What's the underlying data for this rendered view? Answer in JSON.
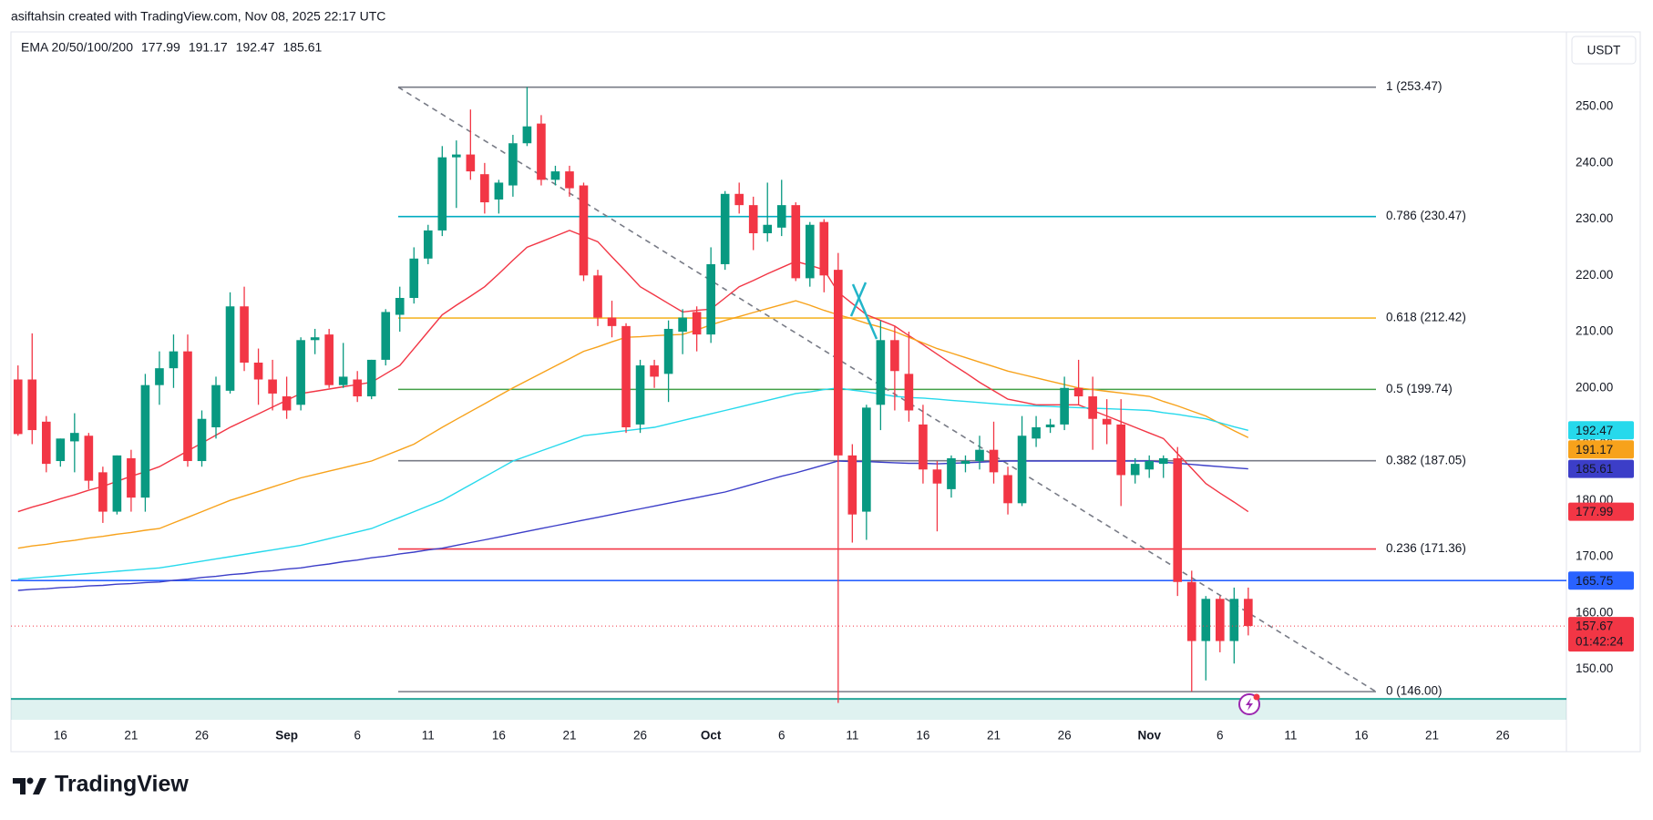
{
  "header": "asiftahsin created with TradingView.com, Nov 08, 2025 22:17 UTC",
  "currency": "USDT",
  "logo": "TradingView",
  "chart_data": {
    "type": "candlestick",
    "legend_title": "EMA 20/50/100/200",
    "categories": [
      null,
      null,
      null,
      "16",
      null,
      null,
      null,
      null,
      "21",
      null,
      null,
      null,
      null,
      "26",
      null,
      null,
      null,
      null,
      null,
      "Sep",
      null,
      null,
      null,
      null,
      "6",
      null,
      null,
      null,
      null,
      "11",
      null,
      null,
      null,
      null,
      "16",
      null,
      null,
      null,
      null,
      "21",
      null,
      null,
      null,
      null,
      "26",
      null,
      null,
      null,
      null,
      "Oct",
      null,
      null,
      null,
      null,
      "6",
      null,
      null,
      null,
      null,
      "11",
      null,
      null,
      null,
      null,
      "16",
      null,
      null,
      null,
      null,
      "21",
      null,
      null,
      null,
      null,
      "26",
      null,
      null,
      null,
      null,
      null,
      "Nov",
      null,
      null,
      null,
      null,
      "6",
      null,
      null,
      null,
      null,
      "11",
      null,
      null,
      null,
      null,
      "16",
      null,
      null,
      null,
      null,
      "21",
      null,
      null,
      null,
      null,
      "26",
      null,
      null,
      null,
      null
    ],
    "ohlc": {
      "up_color": "#089981",
      "down_color": "#f23645",
      "open": [
        201.5,
        201.5,
        194,
        187,
        190.5,
        191.5,
        185,
        178,
        187.5,
        180.5,
        200.5,
        203.5,
        206.5,
        187,
        193,
        199.5,
        214.5,
        204.5,
        201.5,
        198.5,
        197,
        208.5,
        209.5,
        200.5,
        201.5,
        198.5,
        205,
        213,
        216,
        223,
        228,
        241,
        241.5,
        238,
        233.5,
        236,
        243.5,
        247,
        237,
        238.5,
        236,
        220,
        212.5,
        211,
        193.5,
        204,
        202.5,
        210,
        213.5,
        209.5,
        222,
        234.5,
        232.5,
        227.5,
        228.5,
        232.5,
        219.5,
        229.5,
        221,
        188,
        178,
        197,
        208.5,
        202.5,
        193.5,
        185.5,
        182,
        186.5,
        187,
        189,
        184.5,
        179.5,
        191,
        193,
        193.5,
        200,
        198.5,
        194.5,
        193.5,
        184.5,
        185.5,
        186.5,
        187.5,
        165.5,
        155,
        162.5,
        155,
        162.5,
        null,
        null,
        null,
        null,
        null,
        null,
        null,
        null,
        null,
        null,
        null,
        null,
        null,
        null,
        null,
        null,
        null,
        null,
        null,
        null,
        null,
        null
      ],
      "high": [
        204,
        209.7,
        195,
        191,
        195.5,
        192,
        186,
        188,
        189,
        202.5,
        206.5,
        209.5,
        209.5,
        196,
        202,
        217,
        218,
        207,
        205,
        202,
        209,
        210.5,
        210.5,
        208,
        203,
        205,
        214,
        218,
        225,
        229,
        243,
        244,
        249.5,
        240,
        237,
        245,
        253.5,
        248.5,
        239.5,
        239.5,
        236.5,
        221,
        215.5,
        211.5,
        205,
        205,
        212,
        214,
        214.5,
        225,
        235,
        236.5,
        234,
        236.5,
        237,
        233,
        229.5,
        230,
        224,
        190,
        197,
        212,
        211,
        210,
        197,
        187,
        188,
        188,
        191.5,
        194,
        186,
        195,
        195,
        194.5,
        202,
        205,
        202,
        198,
        198,
        187.5,
        188,
        188,
        189.5,
        167.5,
        163,
        163,
        164.5,
        164.5,
        null,
        null,
        null,
        null,
        null,
        null,
        null,
        null,
        null,
        null,
        null,
        null,
        null,
        null,
        null,
        null,
        null,
        null,
        null,
        null,
        null,
        null
      ],
      "low": [
        191.5,
        190,
        185,
        186,
        185,
        182,
        176,
        177.5,
        178,
        178,
        197,
        200,
        186,
        186,
        191,
        199,
        203,
        197,
        196,
        194.5,
        196,
        206,
        200,
        200,
        197.5,
        198,
        204,
        210,
        215,
        222,
        227,
        232,
        237,
        231,
        231,
        234,
        243,
        236,
        236,
        234,
        219,
        211,
        209,
        192,
        192,
        200,
        197.5,
        206,
        206.5,
        208,
        221,
        231,
        224.5,
        226,
        227,
        219,
        218,
        217,
        144,
        172.5,
        173,
        192.5,
        196,
        194,
        183,
        174.5,
        180.5,
        185,
        185.5,
        183,
        177.5,
        179,
        189.5,
        192,
        192.5,
        197,
        189,
        190,
        179,
        183,
        184,
        184,
        163,
        146,
        148,
        153,
        151,
        156,
        null,
        null,
        null,
        null,
        null,
        null,
        null,
        null,
        null,
        null,
        null,
        null,
        null,
        null,
        null,
        null,
        null,
        null,
        null,
        null,
        null,
        null
      ],
      "close": [
        191.8,
        192.5,
        186.5,
        191,
        192,
        183.5,
        178,
        188,
        180.5,
        200.5,
        203.5,
        206.5,
        187,
        194.5,
        200.5,
        214.5,
        204.5,
        201.5,
        199,
        196,
        208.5,
        209,
        200.5,
        202,
        198.5,
        205,
        213.5,
        216,
        223,
        228,
        241,
        241.5,
        238.5,
        233,
        236.5,
        243.5,
        246.5,
        237,
        238.5,
        235.5,
        220,
        212.5,
        211,
        193,
        204,
        202,
        210.5,
        212.5,
        209.5,
        222,
        234.5,
        232.5,
        227.5,
        229,
        232.5,
        219.5,
        229,
        220,
        188,
        177.5,
        196.5,
        208.5,
        203,
        196,
        185.5,
        183,
        187.5,
        187,
        189,
        185,
        179.5,
        191.5,
        193,
        193.5,
        200,
        198.5,
        194.5,
        193.5,
        184.5,
        186.5,
        187,
        187.5,
        165.5,
        155,
        162.5,
        155,
        162.5,
        157.67,
        null,
        null,
        null,
        null,
        null,
        null,
        null,
        null,
        null,
        null,
        null,
        null,
        null,
        null,
        null,
        null,
        null,
        null,
        null,
        null,
        null,
        null
      ]
    },
    "series": [
      {
        "color": "#f23645",
        "values": [
          178,
          178.8,
          179.5,
          180.3,
          181,
          181.8,
          182.5,
          183.4,
          184.3,
          185.1,
          186,
          187.4,
          188.8,
          190.2,
          191.6,
          193,
          194.2,
          195.4,
          196.6,
          197.8,
          199,
          199.4,
          199.8,
          200.2,
          200.6,
          201,
          202.5,
          204,
          207,
          210,
          213,
          214.7,
          216.3,
          218,
          220.3,
          222.7,
          225,
          226,
          227,
          228,
          227,
          226,
          223.3,
          220.7,
          218,
          216.5,
          215,
          213.5,
          213.8,
          214,
          216,
          218,
          219.1,
          220.3,
          221.4,
          222.5,
          221.8,
          221,
          217,
          215,
          213,
          212,
          211,
          209.3,
          207.7,
          206,
          204.3,
          202.7,
          201,
          199.5,
          198,
          197.5,
          197,
          197,
          197,
          197,
          196,
          195,
          194,
          193,
          192,
          191,
          188.3,
          185.7,
          183,
          181.3,
          179.7,
          177.99,
          null,
          null,
          null,
          null,
          null,
          null,
          null,
          null,
          null,
          null,
          null,
          null,
          null,
          null,
          null,
          null,
          null,
          null,
          null,
          null,
          null,
          null
        ]
      },
      {
        "color": "#f7a21b",
        "values": [
          171.5,
          171.9,
          172.2,
          172.6,
          172.9,
          173.3,
          173.6,
          174,
          174.3,
          174.7,
          175,
          176,
          177,
          178,
          179,
          180,
          180.8,
          181.6,
          182.4,
          183.2,
          184,
          184.6,
          185.2,
          185.8,
          186.4,
          187,
          188,
          189,
          190,
          191.5,
          193,
          194.4,
          195.8,
          197.2,
          198.6,
          200,
          201.3,
          202.6,
          203.9,
          205.2,
          206.5,
          207.3,
          208.2,
          209,
          209.1,
          209.3,
          209.4,
          209.5,
          210.3,
          211.2,
          212,
          212.7,
          213.4,
          214.1,
          214.8,
          215.5,
          214.7,
          213.8,
          213,
          212.3,
          211.5,
          210.8,
          210,
          209,
          208,
          207,
          206.2,
          205.4,
          204.6,
          203.8,
          203,
          202.4,
          201.8,
          201.2,
          200.6,
          200,
          199.7,
          199.4,
          199.1,
          198.8,
          198.5,
          197.6,
          196.8,
          195.9,
          195,
          193.7,
          192.4,
          191.17,
          null,
          null,
          null,
          null,
          null,
          null,
          null,
          null,
          null,
          null,
          null,
          null,
          null,
          null,
          null,
          null,
          null,
          null,
          null,
          null,
          null,
          null
        ]
      },
      {
        "color": "#26d9ec",
        "values": [
          166,
          166.2,
          166.4,
          166.6,
          166.8,
          167,
          167.2,
          167.4,
          167.6,
          167.8,
          168,
          168.4,
          168.8,
          169.2,
          169.6,
          170,
          170.4,
          170.8,
          171.2,
          171.6,
          172,
          172.6,
          173.2,
          173.8,
          174.4,
          175,
          176,
          177,
          178,
          179,
          180,
          181.4,
          182.8,
          184.2,
          185.6,
          187,
          187.9,
          188.8,
          189.7,
          190.6,
          191.5,
          191.8,
          192.1,
          192.4,
          192.7,
          193,
          193.6,
          194.2,
          194.8,
          195.4,
          196,
          196.6,
          197.2,
          197.8,
          198.4,
          199,
          199.3,
          199.7,
          200,
          199.6,
          199.3,
          198.9,
          198.5,
          198.3,
          198.2,
          198,
          197.8,
          197.6,
          197.4,
          197.2,
          197,
          196.9,
          196.8,
          196.7,
          196.6,
          196.5,
          196.4,
          196.3,
          196.2,
          196.1,
          196,
          195.6,
          195.3,
          194.9,
          194.5,
          193.8,
          193.1,
          192.47,
          null,
          null,
          null,
          null,
          null,
          null,
          null,
          null,
          null,
          null,
          null,
          null,
          null,
          null,
          null,
          null,
          null,
          null,
          null,
          null,
          null,
          null
        ]
      },
      {
        "color": "#3c3ec8",
        "values": [
          164,
          164.2,
          164.3,
          164.5,
          164.6,
          164.8,
          164.9,
          165.1,
          165.2,
          165.4,
          165.5,
          165.8,
          166,
          166.3,
          166.5,
          166.8,
          167,
          167.3,
          167.5,
          167.8,
          168,
          168.4,
          168.7,
          169.1,
          169.4,
          169.8,
          170.1,
          170.5,
          170.8,
          171.2,
          171.5,
          172,
          172.5,
          173,
          173.5,
          174,
          174.5,
          175,
          175.5,
          176,
          176.5,
          177,
          177.5,
          178,
          178.5,
          179,
          179.5,
          180,
          180.5,
          181,
          181.5,
          182.2,
          182.9,
          183.6,
          184.3,
          184.9,
          185.6,
          186.3,
          187,
          186.9,
          186.9,
          186.8,
          186.7,
          186.6,
          186.6,
          186.5,
          186.6,
          186.7,
          186.8,
          186.9,
          187,
          187,
          187,
          187,
          187,
          187,
          187,
          187,
          187,
          187,
          187,
          186.8,
          186.6,
          186.4,
          186.2,
          186,
          185.8,
          185.61,
          null,
          null,
          null,
          null,
          null,
          null,
          null,
          null,
          null,
          null,
          null,
          null,
          null,
          null,
          null,
          null,
          null,
          null,
          null,
          null,
          null,
          null
        ]
      }
    ],
    "ylim": [
      141,
      263.3
    ],
    "yticks": [
      {
        "value": 150,
        "label": "150.00"
      },
      {
        "value": 160,
        "label": "160.00"
      },
      {
        "value": 170,
        "label": "170.00"
      },
      {
        "value": 180,
        "label": "180.00"
      },
      {
        "value": 190,
        "label": "190.00"
      },
      {
        "value": 200,
        "label": "200.00"
      },
      {
        "value": 210,
        "label": "210.00"
      },
      {
        "value": 220,
        "label": "220.00"
      },
      {
        "value": 230,
        "label": "230.00"
      },
      {
        "value": 240,
        "label": "240.00"
      },
      {
        "value": 250,
        "label": "250.00"
      }
    ],
    "fib_levels": [
      {
        "label": "1 (253.47)",
        "value": 253.47,
        "color": "#787b86"
      },
      {
        "label": "0.786 (230.47)",
        "value": 230.47,
        "color": "#00acc1"
      },
      {
        "label": "0.618 (212.42)",
        "value": 212.42,
        "color": "#f5b72b"
      },
      {
        "label": "0.5 (199.74)",
        "value": 199.74,
        "color": "#43a047"
      },
      {
        "label": "0.382 (187.05)",
        "value": 187.05,
        "color": "#787b86"
      },
      {
        "label": "0.236 (171.36)",
        "value": 171.36,
        "color": "#f23645"
      },
      {
        "label": "0 (146.00)",
        "value": 146,
        "color": "#787b86"
      }
    ],
    "hline": {
      "value": 165.75,
      "color": "#2962ff"
    },
    "zone": {
      "value": 144.7,
      "color": "#26a69a"
    },
    "countdown": "01:42:24",
    "grid": false
  }
}
